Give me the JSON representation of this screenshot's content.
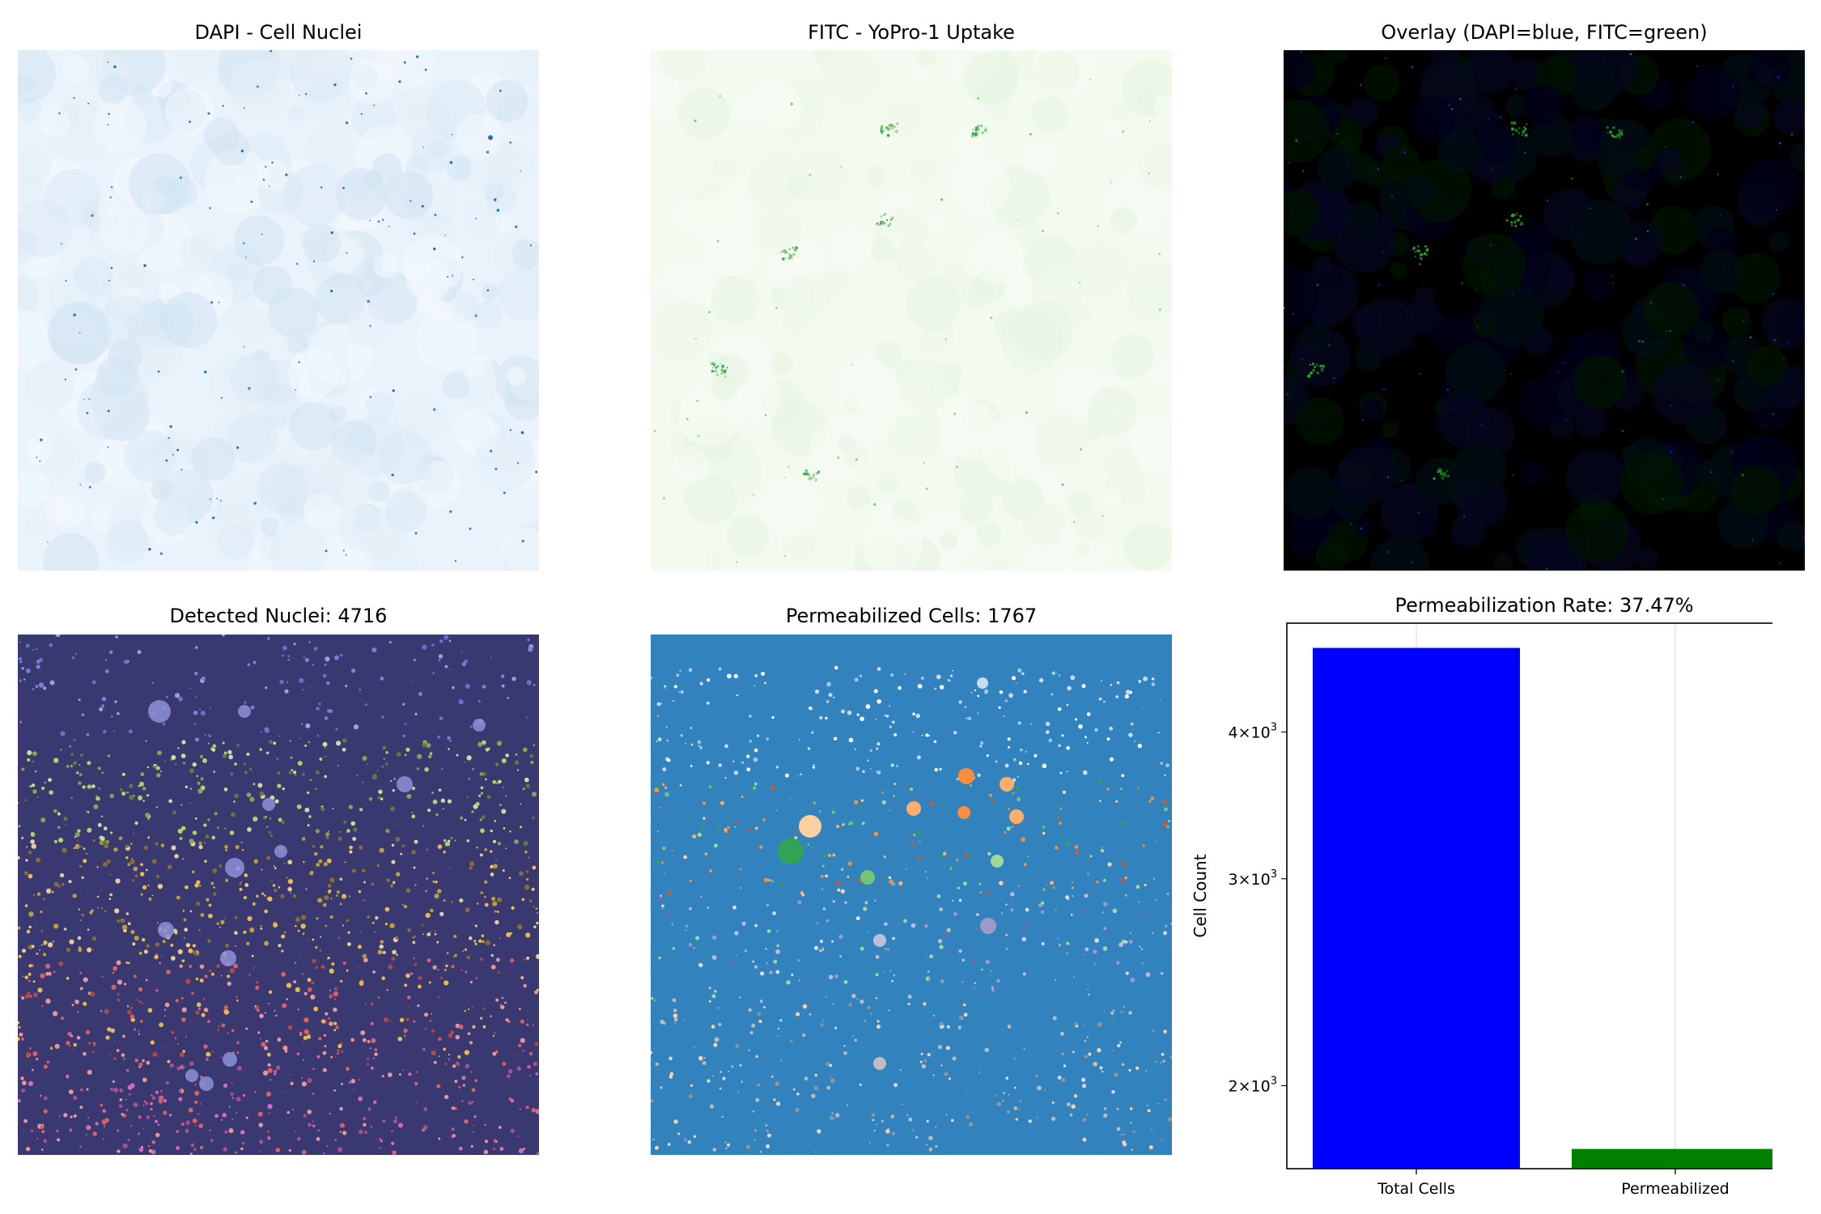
{
  "panels": {
    "dapi": {
      "title": "DAPI - Cell Nuclei"
    },
    "fitc": {
      "title": "FITC - YoPro-1 Uptake"
    },
    "overlay": {
      "title": "Overlay (DAPI=blue, FITC=green)"
    },
    "nuclei": {
      "title": "Detected Nuclei: 4716"
    },
    "permeabilized": {
      "title": "Permeabilized Cells: 1767"
    }
  },
  "chart_data": {
    "type": "bar",
    "title": "Permeabilization Rate: 37.47%",
    "ylabel": "Cell Count",
    "xlabel": "",
    "y_scale": "log",
    "ylim": [
      1700,
      4950
    ],
    "grid": true,
    "categories": [
      "Total Cells",
      "Permeabilized"
    ],
    "values": [
      4716,
      1767
    ],
    "colors": [
      "#0000ff",
      "#008000"
    ],
    "yticks": [
      {
        "value": 2000,
        "mantissa": "2",
        "base": "10",
        "exp": "3"
      },
      {
        "value": 3000,
        "mantissa": "3",
        "base": "10",
        "exp": "3"
      },
      {
        "value": 4000,
        "mantissa": "4",
        "base": "10",
        "exp": "3"
      }
    ]
  },
  "colors": {
    "dapi_background": "#eaf3fb",
    "fitc_background": "#f3faf0",
    "overlay_background": "#000000",
    "nuclei_background": "#393871",
    "permeabilized_background": "#3182bd"
  }
}
